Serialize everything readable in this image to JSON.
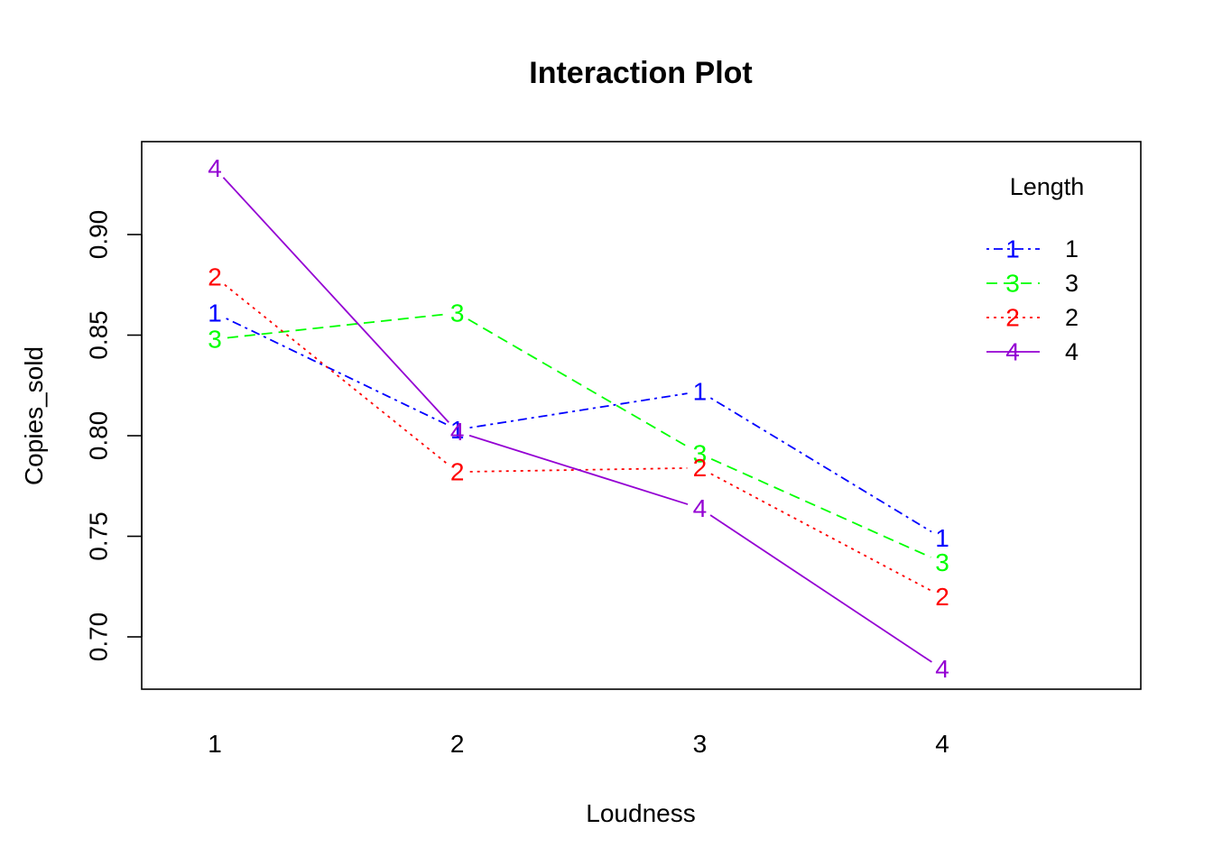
{
  "chart_data": {
    "type": "line",
    "title": "Interaction Plot",
    "xlabel": "Loudness",
    "ylabel": "Copies_sold",
    "x": [
      "1",
      "2",
      "3",
      "4"
    ],
    "ylim": [
      0.68,
      0.935
    ],
    "yticks": [
      0.7,
      0.75,
      0.8,
      0.85,
      0.9
    ],
    "ytick_labels": [
      "0.70",
      "0.75",
      "0.80",
      "0.85",
      "0.90"
    ],
    "grid": false,
    "legend": {
      "title": "Length",
      "placement": "top-right",
      "order": [
        "1",
        "3",
        "2",
        "4"
      ]
    },
    "series": [
      {
        "name": "1",
        "marker": "1",
        "color": "#0000FF",
        "dash": "dotdash",
        "values": [
          0.861,
          0.803,
          0.822,
          0.749
        ]
      },
      {
        "name": "3",
        "marker": "3",
        "color": "#00FF00",
        "dash": "dashed",
        "values": [
          0.848,
          0.861,
          0.791,
          0.737
        ]
      },
      {
        "name": "2",
        "marker": "2",
        "color": "#FF0000",
        "dash": "dotted",
        "values": [
          0.879,
          0.782,
          0.784,
          0.72
        ]
      },
      {
        "name": "4",
        "marker": "4",
        "color": "#9400D3",
        "dash": "solid",
        "values": [
          0.933,
          0.802,
          0.764,
          0.684
        ]
      }
    ]
  }
}
